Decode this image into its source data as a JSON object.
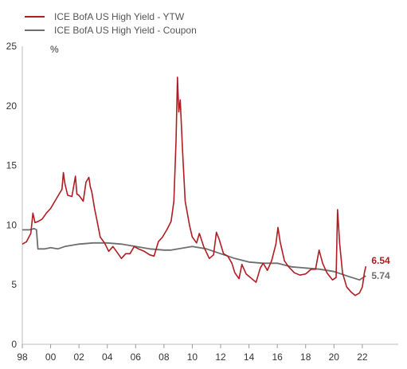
{
  "chart_data": {
    "type": "line",
    "unit": "%",
    "ylim": [
      0,
      25
    ],
    "yticks": [
      0,
      5,
      10,
      15,
      20,
      25
    ],
    "xlim": [
      1998,
      2023.3
    ],
    "xticks": [
      {
        "year": 1998,
        "label": "98"
      },
      {
        "year": 2000,
        "label": "00"
      },
      {
        "year": 2002,
        "label": "02"
      },
      {
        "year": 2004,
        "label": "04"
      },
      {
        "year": 2006,
        "label": "06"
      },
      {
        "year": 2008,
        "label": "08"
      },
      {
        "year": 2010,
        "label": "10"
      },
      {
        "year": 2012,
        "label": "12"
      },
      {
        "year": 2014,
        "label": "14"
      },
      {
        "year": 2016,
        "label": "16"
      },
      {
        "year": 2018,
        "label": "18"
      },
      {
        "year": 2020,
        "label": "20"
      },
      {
        "year": 2022,
        "label": "22"
      }
    ],
    "grid": false,
    "legend_position": "top-left",
    "series": [
      {
        "name": "ICE BofA US High Yield - YTW",
        "color": "#b01c22",
        "end_label": "6.54",
        "points": [
          [
            1998.0,
            8.4
          ],
          [
            1998.3,
            8.6
          ],
          [
            1998.6,
            9.3
          ],
          [
            1998.75,
            11.0
          ],
          [
            1998.9,
            10.2
          ],
          [
            1999.1,
            10.3
          ],
          [
            1999.4,
            10.5
          ],
          [
            1999.7,
            11.0
          ],
          [
            2000.0,
            11.4
          ],
          [
            2000.3,
            12.0
          ],
          [
            2000.6,
            12.6
          ],
          [
            2000.8,
            13.0
          ],
          [
            2000.9,
            14.4
          ],
          [
            2001.0,
            13.5
          ],
          [
            2001.2,
            12.5
          ],
          [
            2001.5,
            12.4
          ],
          [
            2001.75,
            14.1
          ],
          [
            2001.85,
            12.6
          ],
          [
            2002.0,
            12.5
          ],
          [
            2002.3,
            12.0
          ],
          [
            2002.5,
            13.6
          ],
          [
            2002.7,
            14.0
          ],
          [
            2002.8,
            13.2
          ],
          [
            2002.9,
            12.8
          ],
          [
            2003.1,
            11.4
          ],
          [
            2003.3,
            10.2
          ],
          [
            2003.5,
            9.0
          ],
          [
            2003.8,
            8.5
          ],
          [
            2004.1,
            7.8
          ],
          [
            2004.4,
            8.2
          ],
          [
            2004.7,
            7.7
          ],
          [
            2005.0,
            7.2
          ],
          [
            2005.3,
            7.6
          ],
          [
            2005.6,
            7.6
          ],
          [
            2005.9,
            8.2
          ],
          [
            2006.2,
            8.0
          ],
          [
            2006.6,
            7.8
          ],
          [
            2007.0,
            7.5
          ],
          [
            2007.3,
            7.4
          ],
          [
            2007.6,
            8.6
          ],
          [
            2007.9,
            9.0
          ],
          [
            2008.2,
            9.6
          ],
          [
            2008.5,
            10.3
          ],
          [
            2008.7,
            12.0
          ],
          [
            2008.85,
            17.0
          ],
          [
            2008.95,
            22.4
          ],
          [
            2009.05,
            19.5
          ],
          [
            2009.15,
            20.5
          ],
          [
            2009.3,
            16.5
          ],
          [
            2009.5,
            12.0
          ],
          [
            2009.8,
            10.0
          ],
          [
            2010.0,
            9.0
          ],
          [
            2010.3,
            8.5
          ],
          [
            2010.5,
            9.3
          ],
          [
            2010.8,
            8.2
          ],
          [
            2011.2,
            7.2
          ],
          [
            2011.5,
            7.5
          ],
          [
            2011.7,
            9.4
          ],
          [
            2011.9,
            8.8
          ],
          [
            2012.2,
            7.6
          ],
          [
            2012.5,
            7.4
          ],
          [
            2012.8,
            6.8
          ],
          [
            2013.0,
            6.0
          ],
          [
            2013.3,
            5.5
          ],
          [
            2013.5,
            6.7
          ],
          [
            2013.8,
            5.9
          ],
          [
            2014.1,
            5.6
          ],
          [
            2014.5,
            5.2
          ],
          [
            2014.8,
            6.4
          ],
          [
            2015.0,
            6.8
          ],
          [
            2015.3,
            6.2
          ],
          [
            2015.6,
            7.0
          ],
          [
            2015.9,
            8.4
          ],
          [
            2016.05,
            9.8
          ],
          [
            2016.2,
            8.6
          ],
          [
            2016.5,
            7.0
          ],
          [
            2016.8,
            6.5
          ],
          [
            2017.2,
            6.0
          ],
          [
            2017.6,
            5.8
          ],
          [
            2018.0,
            5.9
          ],
          [
            2018.4,
            6.3
          ],
          [
            2018.7,
            6.3
          ],
          [
            2018.95,
            7.9
          ],
          [
            2019.2,
            6.8
          ],
          [
            2019.5,
            6.0
          ],
          [
            2019.9,
            5.4
          ],
          [
            2020.15,
            5.6
          ],
          [
            2020.25,
            11.3
          ],
          [
            2020.4,
            8.5
          ],
          [
            2020.6,
            6.0
          ],
          [
            2020.9,
            4.8
          ],
          [
            2021.2,
            4.4
          ],
          [
            2021.5,
            4.1
          ],
          [
            2021.8,
            4.3
          ],
          [
            2022.0,
            4.8
          ],
          [
            2022.15,
            6.0
          ],
          [
            2022.25,
            6.54
          ]
        ]
      },
      {
        "name": "ICE BofA US High Yield - Coupon",
        "color": "#6e6e6e",
        "end_label": "5.74",
        "points": [
          [
            1998.0,
            9.6
          ],
          [
            1998.5,
            9.6
          ],
          [
            1998.85,
            9.7
          ],
          [
            1999.0,
            9.6
          ],
          [
            1999.1,
            8.0
          ],
          [
            1999.6,
            8.0
          ],
          [
            2000.0,
            8.1
          ],
          [
            2000.5,
            8.0
          ],
          [
            2001.0,
            8.2
          ],
          [
            2002.0,
            8.4
          ],
          [
            2003.0,
            8.5
          ],
          [
            2004.0,
            8.5
          ],
          [
            2005.0,
            8.4
          ],
          [
            2006.0,
            8.2
          ],
          [
            2007.0,
            8.0
          ],
          [
            2008.0,
            7.9
          ],
          [
            2008.5,
            7.9
          ],
          [
            2009.0,
            8.0
          ],
          [
            2009.5,
            8.1
          ],
          [
            2010.0,
            8.2
          ],
          [
            2011.0,
            8.0
          ],
          [
            2012.0,
            7.6
          ],
          [
            2013.0,
            7.2
          ],
          [
            2014.0,
            6.9
          ],
          [
            2015.0,
            6.8
          ],
          [
            2016.0,
            6.8
          ],
          [
            2017.0,
            6.5
          ],
          [
            2018.0,
            6.4
          ],
          [
            2019.0,
            6.3
          ],
          [
            2020.0,
            6.1
          ],
          [
            2021.0,
            5.7
          ],
          [
            2021.8,
            5.4
          ],
          [
            2022.25,
            5.74
          ]
        ]
      }
    ]
  }
}
